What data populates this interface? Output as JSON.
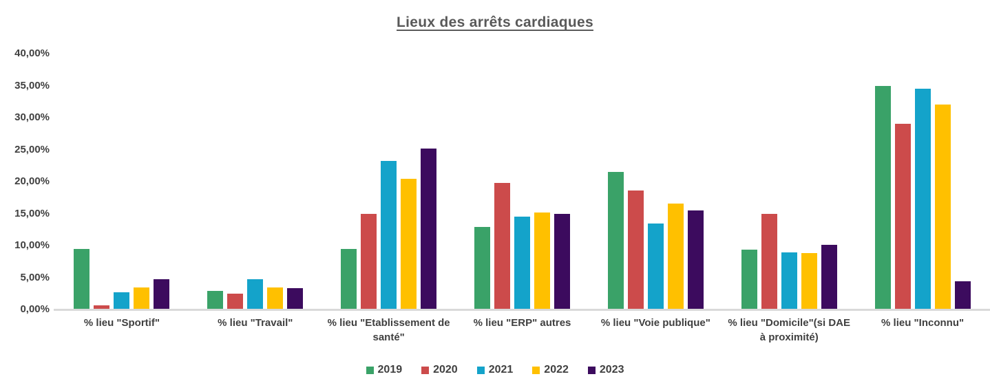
{
  "chart_data": {
    "type": "bar",
    "title": "Lieux des arrêts cardiaques",
    "categories": [
      "% lieu \"Sportif\"",
      "% lieu \"Travail\"",
      "% lieu \"Etablissement de santé\"",
      "% lieu \"ERP\" autres",
      "% lieu \"Voie publique\"",
      "% lieu \"Domicile\"(si DAE à proximité)",
      "% lieu \"Inconnu\""
    ],
    "series": [
      {
        "name": "2019",
        "color": "#3AA268",
        "values": [
          9.5,
          2.9,
          9.5,
          12.9,
          21.5,
          9.4,
          35.0
        ]
      },
      {
        "name": "2020",
        "color": "#CC4B4B",
        "values": [
          0.7,
          2.5,
          15.0,
          19.8,
          18.6,
          15.0,
          29.0
        ]
      },
      {
        "name": "2021",
        "color": "#14A3CA",
        "values": [
          2.7,
          4.7,
          23.2,
          14.5,
          13.4,
          8.9,
          34.5
        ]
      },
      {
        "name": "2022",
        "color": "#FFC000",
        "values": [
          3.4,
          3.4,
          20.4,
          15.2,
          16.6,
          8.8,
          32.0
        ]
      },
      {
        "name": "2023",
        "color": "#3C0B5E",
        "values": [
          4.7,
          3.3,
          25.2,
          15.0,
          15.5,
          10.1,
          4.4
        ]
      }
    ],
    "xlabel": "",
    "ylabel": "",
    "ylim": [
      0,
      40
    ],
    "y_tick_step": 5,
    "y_tick_labels_top_to_bottom": [
      "40,00%",
      "35,00%",
      "30,00%",
      "25,00%",
      "20,00%",
      "15,00%",
      "10,00%",
      "5,00%",
      "0,00%"
    ],
    "grid": false,
    "legend_position": "bottom"
  },
  "colors": {
    "background": "#FFFFFF",
    "title_text": "#595959",
    "axis_text": "#404040",
    "axis_line": "#D9D9D9"
  }
}
